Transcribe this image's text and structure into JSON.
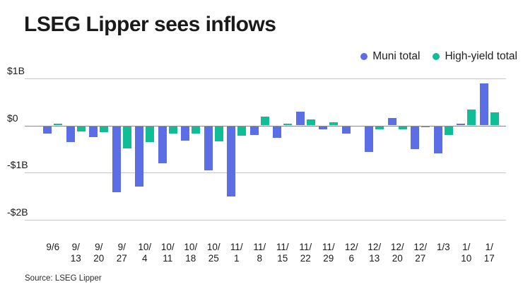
{
  "title": "LSEG Lipper sees inflows",
  "source": "Source: LSEG Lipper",
  "legend": [
    {
      "label": "Muni total",
      "color": "#5b6ee6"
    },
    {
      "label": "High-yield total",
      "color": "#10bd97"
    }
  ],
  "colors": {
    "muni": "#5b6ee6",
    "high_yield": "#10bd97",
    "gridline": "#c6c6c6",
    "zero_line": "#8c8c8c",
    "text": "#1a1a1a"
  },
  "chart_data": {
    "type": "bar",
    "title": "LSEG Lipper sees inflows",
    "unit": "billions of dollars (weekly fund flows)",
    "categories": [
      "9/6",
      "9/13",
      "9/20",
      "9/27",
      "10/4",
      "10/11",
      "10/18",
      "10/25",
      "11/1",
      "11/8",
      "11/15",
      "11/22",
      "11/29",
      "12/6",
      "12/13",
      "12/20",
      "12/27",
      "1/3",
      "1/10",
      "1/17"
    ],
    "tick_lines": [
      [
        "9/6"
      ],
      [
        "9/",
        "13"
      ],
      [
        "9/",
        "20"
      ],
      [
        "9/",
        "27"
      ],
      [
        "10/",
        "4"
      ],
      [
        "10/",
        "11"
      ],
      [
        "10/",
        "18"
      ],
      [
        "10/",
        "25"
      ],
      [
        "11/",
        "1"
      ],
      [
        "11/",
        "8"
      ],
      [
        "11/",
        "15"
      ],
      [
        "11/",
        "22"
      ],
      [
        "11/",
        "29"
      ],
      [
        "12/",
        "6"
      ],
      [
        "12/",
        "13"
      ],
      [
        "12/",
        "20"
      ],
      [
        "12/",
        "27"
      ],
      [
        "1/3"
      ],
      [
        "1/",
        "10"
      ],
      [
        "1/",
        "17"
      ]
    ],
    "series": [
      {
        "name": "Muni total",
        "color": "#5b6ee6",
        "values": [
          -0.15,
          -0.33,
          -0.23,
          -1.4,
          -1.28,
          -0.78,
          -0.3,
          -0.94,
          -1.49,
          -0.18,
          -0.25,
          0.29,
          -0.07,
          -0.16,
          -0.55,
          0.16,
          -0.48,
          -0.58,
          0.04,
          0.89
        ]
      },
      {
        "name": "High-yield total",
        "color": "#10bd97",
        "values": [
          0.04,
          -0.11,
          -0.12,
          -0.47,
          -0.34,
          -0.16,
          -0.16,
          -0.32,
          -0.2,
          0.19,
          0.04,
          0.12,
          0.06,
          0.0,
          -0.07,
          -0.07,
          -0.01,
          -0.18,
          0.34,
          0.28
        ]
      }
    ],
    "y_ticks": [
      {
        "value": 1,
        "label": "$1B"
      },
      {
        "value": 0,
        "label": "$0"
      },
      {
        "value": -1,
        "label": "-$1B"
      },
      {
        "value": -2,
        "label": "-$2B"
      }
    ],
    "ylim": [
      -2,
      1
    ],
    "xlabel": "",
    "ylabel": "",
    "grid": "horizontal",
    "legend_position": "top-right"
  }
}
